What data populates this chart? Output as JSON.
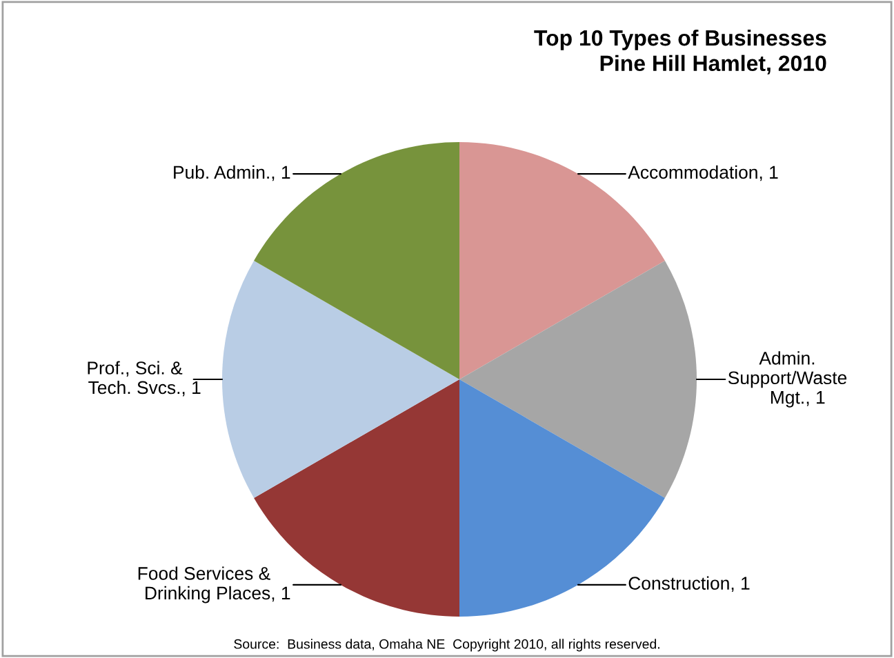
{
  "chart_data": {
    "type": "pie",
    "title": "Top 10 Types of Businesses\nPine Hill Hamlet, 2010",
    "categories": [
      "Accommodation",
      "Admin. Support/Waste Mgt.",
      "Construction",
      "Food Services & Drinking Places",
      "Prof., Sci. & Tech. Svcs.",
      "Pub. Admin."
    ],
    "values": [
      1,
      1,
      1,
      1,
      1,
      1
    ],
    "value_labels": [
      ", 1",
      ", 1",
      ", 1",
      ", 1",
      ", 1",
      ", 1"
    ],
    "colors": [
      "#d99694",
      "#a6a6a6",
      "#558ed5",
      "#953735",
      "#b9cde5",
      "#77933c"
    ],
    "legend": false,
    "annotations": [
      "Source:  Business data, Omaha NE  Copyright 2010, all rights reserved."
    ]
  }
}
